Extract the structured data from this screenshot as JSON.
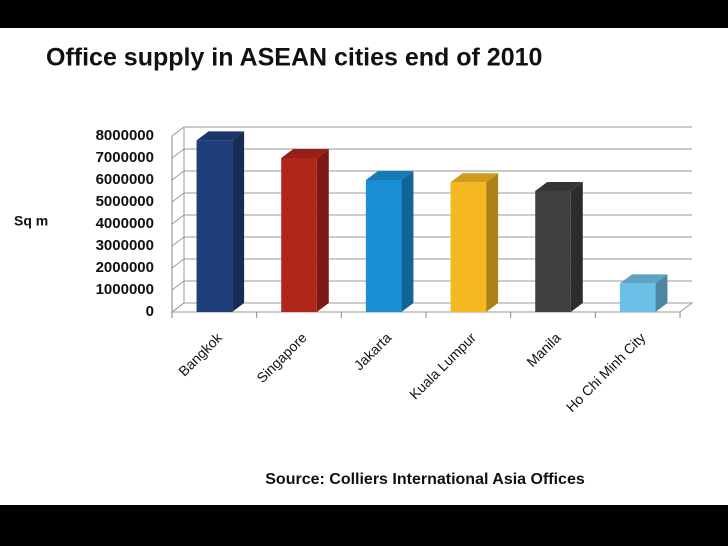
{
  "chart_data": {
    "type": "bar",
    "title": "Office supply in ASEAN cities end of 2010",
    "y_label": "Sq m",
    "source": "Source: Colliers International Asia Offices",
    "categories": [
      "Bangkok",
      "Singapore",
      "Jakarta",
      "Kuala Lumpur",
      "Manila",
      "Ho Chi Minh City"
    ],
    "values": [
      7800000,
      7000000,
      6000000,
      5900000,
      5500000,
      1300000
    ],
    "colors": [
      "#1f3f7a",
      "#b0261b",
      "#1a8fd6",
      "#f5b820",
      "#3f3f3f",
      "#6cc0e8"
    ],
    "ylim": [
      0,
      8000000
    ],
    "yticks": [
      0,
      1000000,
      2000000,
      3000000,
      4000000,
      5000000,
      6000000,
      7000000,
      8000000
    ],
    "grid": true
  }
}
